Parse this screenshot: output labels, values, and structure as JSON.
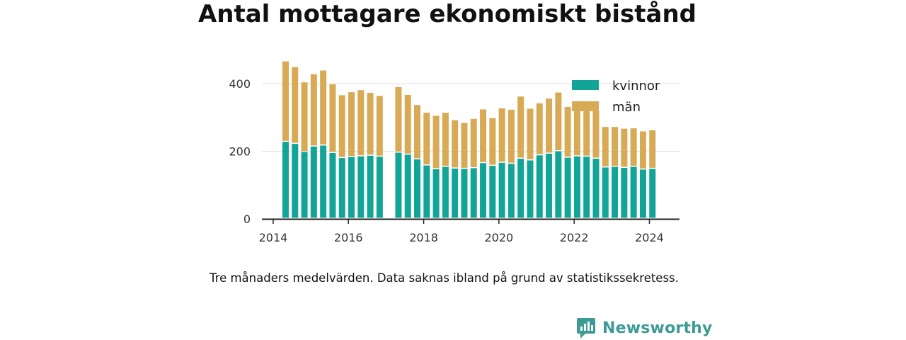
{
  "title": "Antal mottagare ekonomiskt bistånd",
  "note": "Tre månaders medelvärden. Data saknas ibland på grund av statistikssekretess.",
  "brand": {
    "name": "Newsworthy",
    "icon": "newsworthy-logo-icon",
    "color": "#3d9b95"
  },
  "chart_data": {
    "type": "bar",
    "stacked": true,
    "x_unit": "year",
    "xlim": [
      2013.7,
      2024.8
    ],
    "ylim": [
      0,
      480
    ],
    "x_ticks": [
      "2014",
      "2016",
      "2018",
      "2020",
      "2022",
      "2024"
    ],
    "y_ticks": [
      "0",
      "200",
      "400"
    ],
    "grid": "horizontal",
    "legend_position": "top-right",
    "x": [
      2014.33,
      2014.58,
      2014.83,
      2015.08,
      2015.33,
      2015.58,
      2015.83,
      2016.08,
      2016.33,
      2016.58,
      2016.83,
      2017.33,
      2017.58,
      2017.83,
      2018.08,
      2018.33,
      2018.58,
      2018.83,
      2019.08,
      2019.33,
      2019.58,
      2019.83,
      2020.08,
      2020.33,
      2020.58,
      2020.83,
      2021.08,
      2021.33,
      2021.58,
      2021.83,
      2022.08,
      2022.33,
      2022.58,
      2022.83,
      2023.08,
      2023.33,
      2023.58,
      2023.83,
      2024.08
    ],
    "series": [
      {
        "name": "kvinnor",
        "color": "#12a597",
        "values": [
          228,
          222,
          198,
          214,
          217,
          195,
          180,
          183,
          185,
          187,
          184,
          196,
          190,
          176,
          158,
          147,
          154,
          149,
          148,
          150,
          165,
          157,
          166,
          163,
          178,
          173,
          188,
          193,
          200,
          181,
          185,
          184,
          178,
          152,
          154,
          151,
          154,
          146,
          148
        ]
      },
      {
        "name": "män",
        "color": "#d9aa56",
        "values": [
          238,
          227,
          206,
          214,
          222,
          203,
          186,
          192,
          196,
          186,
          180,
          194,
          177,
          161,
          156,
          158,
          160,
          143,
          136,
          146,
          159,
          141,
          161,
          160,
          184,
          153,
          154,
          163,
          174,
          150,
          150,
          143,
          141,
          120,
          118,
          116,
          114,
          113,
          114
        ]
      }
    ]
  }
}
